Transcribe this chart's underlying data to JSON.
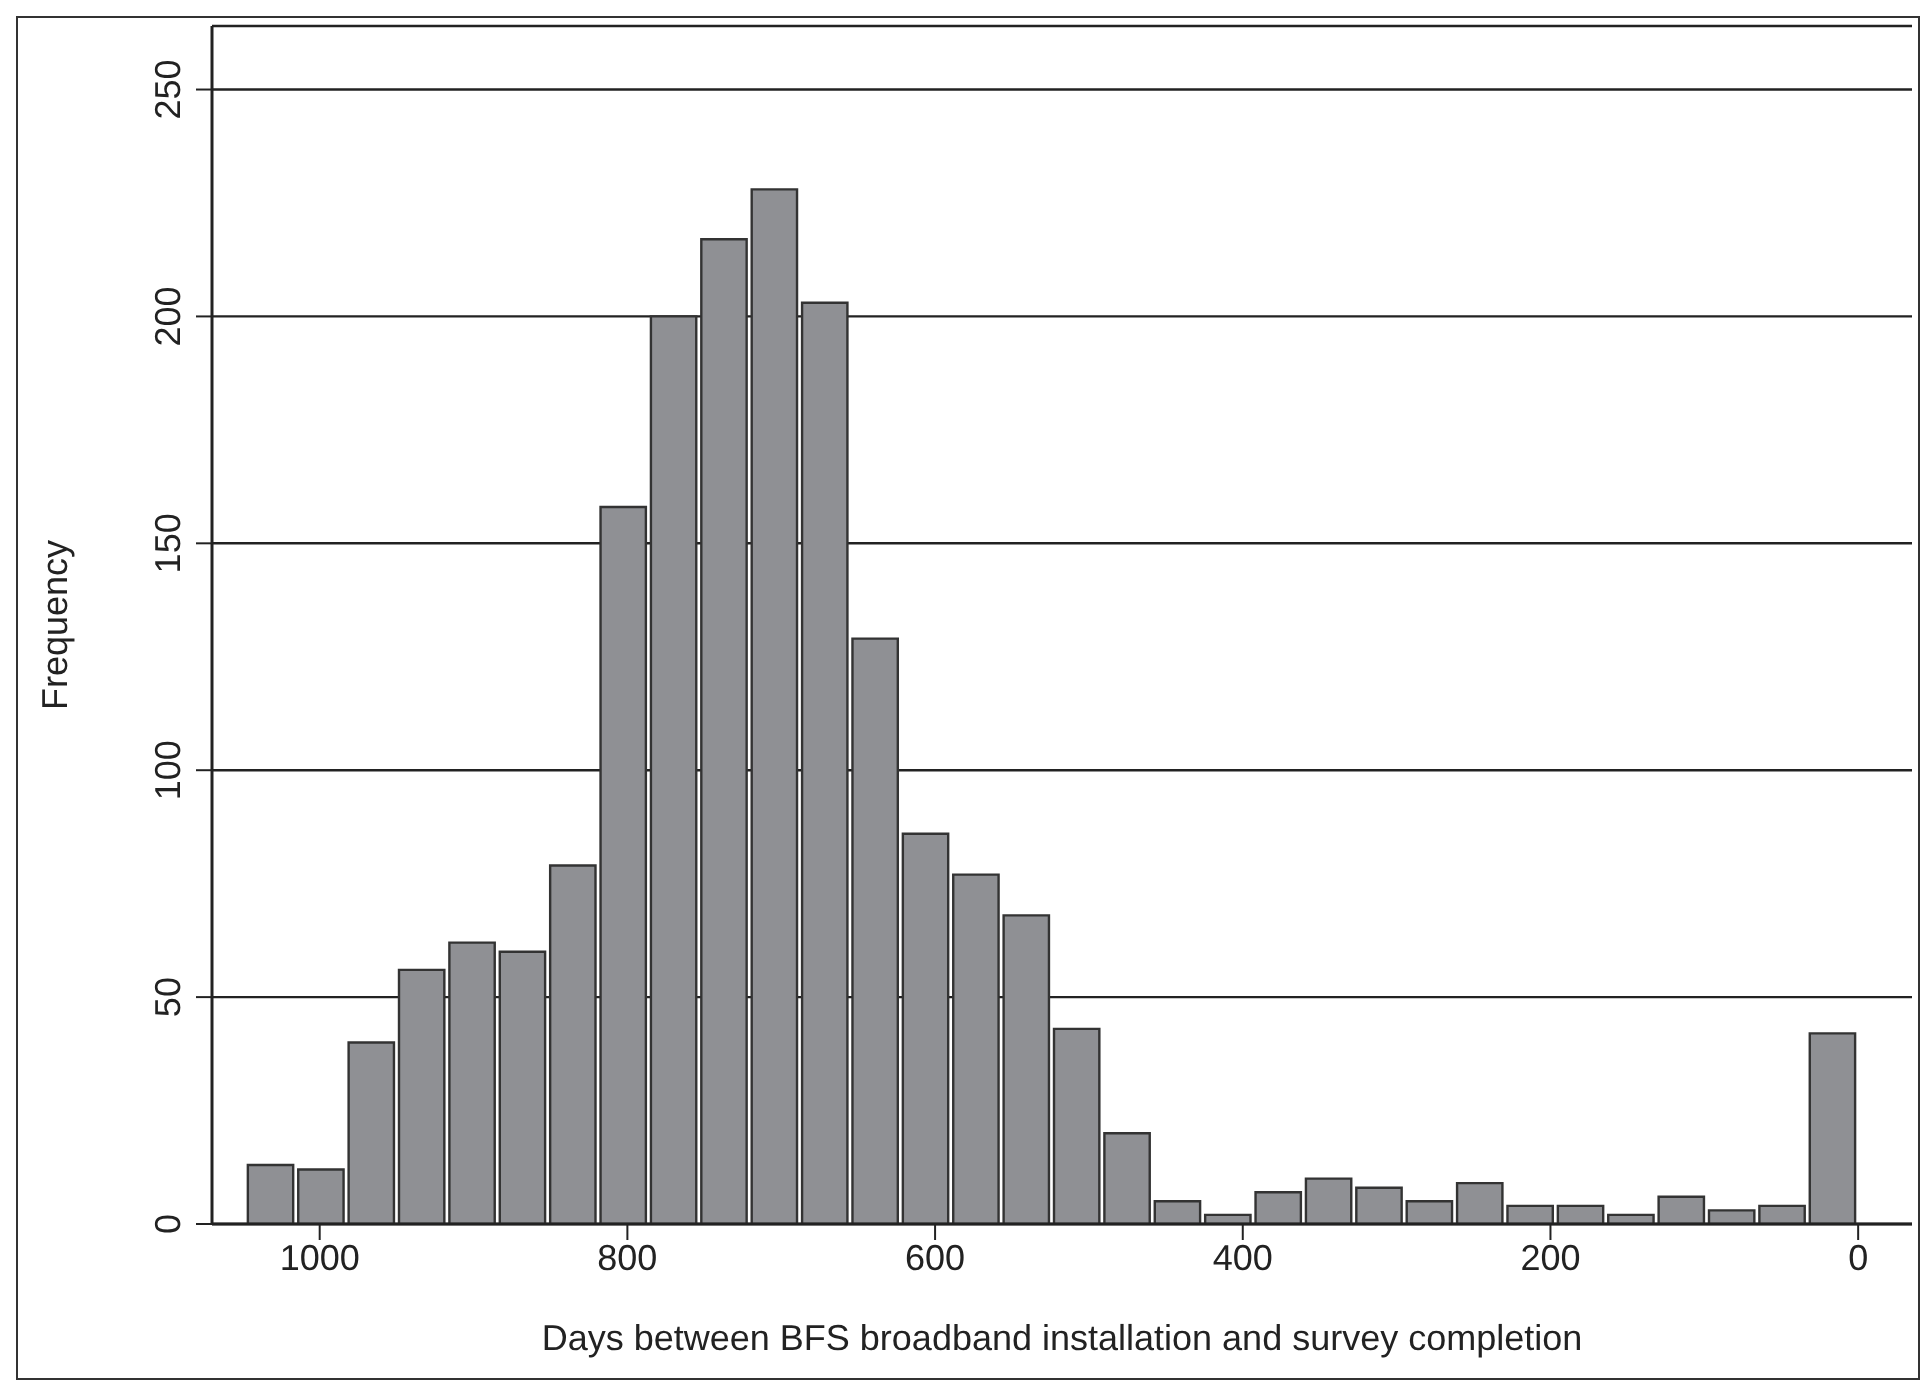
{
  "chart_data": {
    "type": "histogram",
    "xlabel": "Days between BFS broadband installation and survey completion",
    "ylabel": "Frequency",
    "bins": [
      1048,
      1015.25,
      982.5,
      949.75,
      917,
      884.25,
      851.5,
      818.75,
      786,
      753.25,
      720.5,
      687.75,
      655,
      622.25,
      589.5,
      556.75,
      524,
      491.25,
      458.5,
      425.75,
      393,
      360.25,
      327.5,
      294.75,
      262,
      229.25,
      196.5,
      163.75,
      131,
      98.25,
      65.5,
      32.75,
      0
    ],
    "values": [
      13,
      12,
      40,
      56,
      62,
      60,
      79,
      158,
      200,
      217,
      228,
      203,
      129,
      86,
      77,
      68,
      43,
      20,
      5,
      2,
      7,
      10,
      8,
      5,
      9,
      4,
      4,
      2,
      6,
      3,
      4,
      42
    ],
    "color": "#8f9094",
    "xlim": [
      1070,
      -35
    ],
    "xticks": [
      1000,
      800,
      600,
      400,
      200,
      0
    ],
    "ylim": [
      0,
      264
    ],
    "yticks": [
      0,
      50,
      100,
      150,
      200,
      250
    ],
    "grid": "y"
  }
}
